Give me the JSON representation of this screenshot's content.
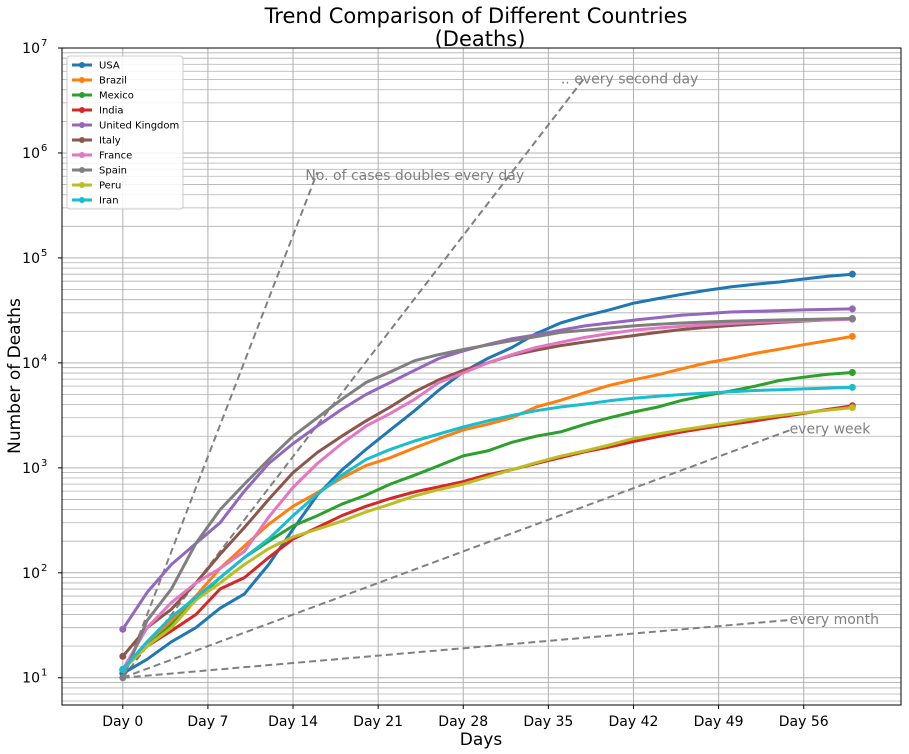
{
  "chart_data": {
    "type": "line",
    "title": "Trend Comparison of Different Countries",
    "subtitle": "(Deaths)",
    "xlabel": "Days",
    "ylabel": "Number of Deaths",
    "yscale": "log",
    "xlim": [
      -5,
      64
    ],
    "ylim": [
      5.5,
      10000000
    ],
    "grid": true,
    "legend_position": "top-left",
    "x_ticks": [
      {
        "value": 0,
        "label": "Day 0"
      },
      {
        "value": 7,
        "label": "Day 7"
      },
      {
        "value": 14,
        "label": "Day 14"
      },
      {
        "value": 21,
        "label": "Day 21"
      },
      {
        "value": 28,
        "label": "Day 28"
      },
      {
        "value": 35,
        "label": "Day 35"
      },
      {
        "value": 42,
        "label": "Day 42"
      },
      {
        "value": 49,
        "label": "Day 49"
      },
      {
        "value": 56,
        "label": "Day 56"
      }
    ],
    "y_ticks": [
      {
        "value": 10,
        "base": "10",
        "exp": "1"
      },
      {
        "value": 100,
        "base": "10",
        "exp": "2"
      },
      {
        "value": 1000,
        "base": "10",
        "exp": "3"
      },
      {
        "value": 10000,
        "base": "10",
        "exp": "4"
      },
      {
        "value": 100000,
        "base": "10",
        "exp": "5"
      },
      {
        "value": 1000000,
        "base": "10",
        "exp": "6"
      },
      {
        "value": 10000000,
        "base": "10",
        "exp": "7"
      }
    ],
    "x": [
      0,
      2,
      4,
      6,
      8,
      10,
      12,
      14,
      16,
      18,
      20,
      22,
      24,
      26,
      28,
      30,
      32,
      34,
      36,
      38,
      40,
      42,
      44,
      46,
      48,
      50,
      52,
      54,
      56,
      58,
      60
    ],
    "series": [
      {
        "name": "USA",
        "color": "#1f77b4",
        "values": [
          11,
          15,
          22,
          30,
          46,
          63,
          120,
          260,
          550,
          950,
          1500,
          2300,
          3500,
          5500,
          8200,
          11000,
          14000,
          19000,
          24000,
          28000,
          32000,
          37000,
          41000,
          45000,
          49000,
          53000,
          56000,
          59000,
          63000,
          67000,
          70000
        ]
      },
      {
        "name": "Brazil",
        "color": "#ff7f0e",
        "values": [
          12,
          20,
          35,
          60,
          110,
          180,
          290,
          430,
          580,
          800,
          1050,
          1250,
          1550,
          1900,
          2300,
          2600,
          3000,
          3800,
          4400,
          5200,
          6100,
          6900,
          7700,
          8800,
          10000,
          11000,
          12300,
          13500,
          14900,
          16300,
          17900
        ]
      },
      {
        "name": "Mexico",
        "color": "#2ca02c",
        "values": [
          12,
          20,
          32,
          55,
          90,
          140,
          200,
          280,
          350,
          450,
          550,
          700,
          850,
          1050,
          1300,
          1450,
          1750,
          2000,
          2200,
          2600,
          3000,
          3400,
          3800,
          4400,
          4900,
          5400,
          6000,
          6800,
          7300,
          7800,
          8100
        ]
      },
      {
        "name": "India",
        "color": "#d62728",
        "values": [
          12,
          20,
          28,
          40,
          70,
          90,
          140,
          210,
          270,
          350,
          430,
          510,
          590,
          660,
          740,
          860,
          960,
          1100,
          1250,
          1420,
          1580,
          1780,
          1980,
          2200,
          2400,
          2600,
          2800,
          3050,
          3300,
          3600,
          3900
        ]
      },
      {
        "name": "United Kingdom",
        "color": "#9467bd",
        "values": [
          29,
          65,
          120,
          190,
          300,
          600,
          1100,
          1700,
          2500,
          3600,
          5000,
          6500,
          8500,
          11000,
          13000,
          15000,
          17000,
          18500,
          20500,
          22500,
          24000,
          25500,
          27000,
          28500,
          29500,
          30500,
          31000,
          31500,
          32000,
          32300,
          32700
        ]
      },
      {
        "name": "Italy",
        "color": "#8c564b",
        "values": [
          16,
          30,
          45,
          80,
          150,
          270,
          500,
          900,
          1400,
          2000,
          2800,
          3800,
          5300,
          6900,
          8500,
          10000,
          11800,
          13200,
          14600,
          15800,
          17000,
          18200,
          19500,
          20800,
          21800,
          22700,
          23500,
          24300,
          25000,
          25800,
          26300
        ]
      },
      {
        "name": "France",
        "color": "#e377c2",
        "values": [
          12,
          30,
          52,
          80,
          110,
          160,
          340,
          650,
          1100,
          1700,
          2500,
          3300,
          4500,
          6500,
          8000,
          10000,
          12000,
          14000,
          15700,
          17500,
          19000,
          20500,
          21500,
          22300,
          23000,
          23700,
          24300,
          24800,
          25300,
          25600,
          26000
        ]
      },
      {
        "name": "Spain",
        "color": "#7f7f7f",
        "values": [
          10,
          35,
          70,
          190,
          400,
          700,
          1200,
          2000,
          3000,
          4500,
          6500,
          8200,
          10500,
          12000,
          13400,
          14800,
          16300,
          17800,
          19500,
          20500,
          21500,
          22500,
          23300,
          24000,
          24500,
          25000,
          25300,
          25600,
          25900,
          26200,
          26500
        ]
      },
      {
        "name": "Peru",
        "color": "#bcbd22",
        "values": [
          12,
          20,
          30,
          55,
          80,
          120,
          170,
          220,
          260,
          310,
          380,
          450,
          540,
          620,
          700,
          820,
          960,
          1120,
          1290,
          1450,
          1650,
          1900,
          2100,
          2300,
          2500,
          2700,
          2950,
          3150,
          3350,
          3550,
          3750
        ]
      },
      {
        "name": "Iran",
        "color": "#17becf",
        "values": [
          12,
          22,
          38,
          58,
          90,
          140,
          210,
          350,
          560,
          850,
          1200,
          1500,
          1800,
          2100,
          2450,
          2800,
          3150,
          3500,
          3800,
          4050,
          4350,
          4600,
          4800,
          5000,
          5150,
          5300,
          5450,
          5550,
          5650,
          5750,
          5850
        ]
      }
    ],
    "reference_lines": [
      {
        "label": "No. of cases doubles every day",
        "doubling_days": 1,
        "x_end": 16
      },
      {
        "label": ".. every second day",
        "doubling_days": 2,
        "x_end": 38
      },
      {
        "label": "every week",
        "doubling_days": 7,
        "x_end": 55
      },
      {
        "label": "every month",
        "doubling_days": 30,
        "x_end": 55
      }
    ]
  }
}
